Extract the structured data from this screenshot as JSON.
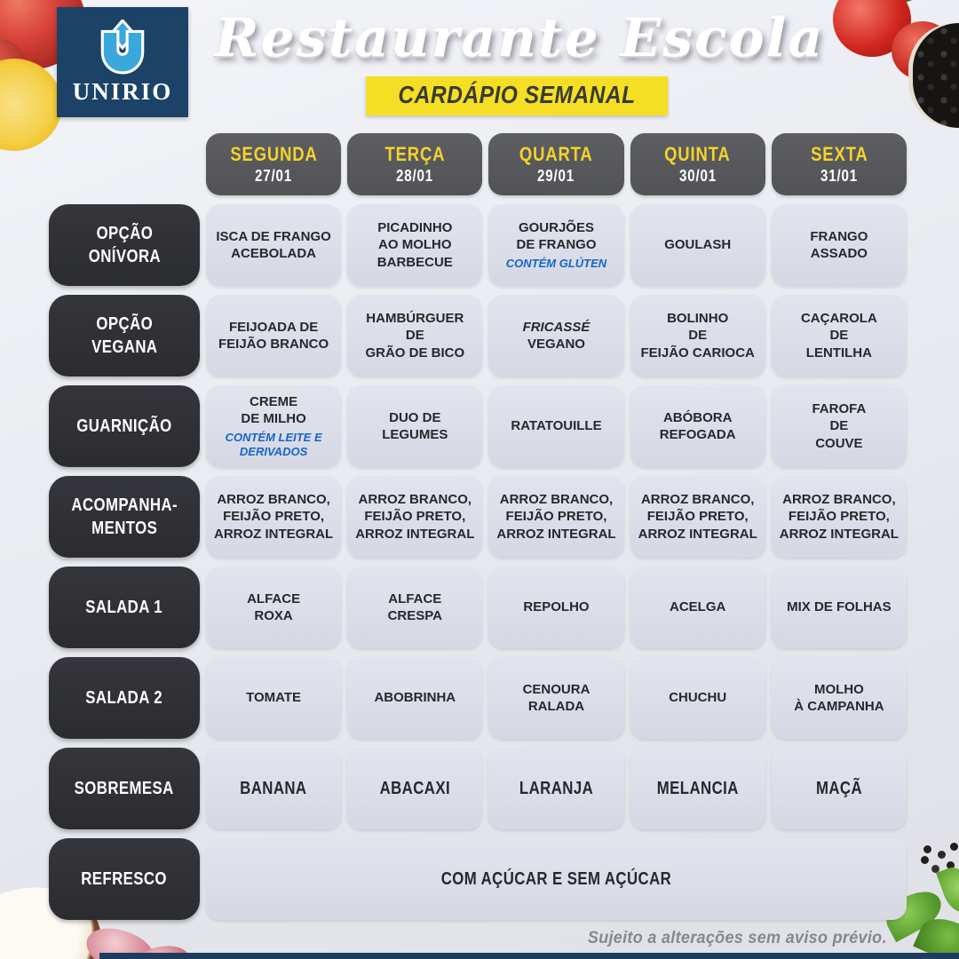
{
  "header": {
    "logo_text": "UNIRIO",
    "title": "Restaurante Escola",
    "subtitle": "CARDÁPIO SEMANAL"
  },
  "days": [
    {
      "name": "SEGUNDA",
      "date": "27/01"
    },
    {
      "name": "TERÇA",
      "date": "28/01"
    },
    {
      "name": "QUARTA",
      "date": "29/01"
    },
    {
      "name": "QUINTA",
      "date": "30/01"
    },
    {
      "name": "SEXTA",
      "date": "31/01"
    }
  ],
  "rows": [
    {
      "label": "OPÇÃO\nONÍVORA",
      "cells": [
        {
          "text": "ISCA DE FRANGO\nACEBOLADA"
        },
        {
          "text": "PICADINHO\nAO MOLHO\nBARBECUE"
        },
        {
          "text": "GOURJÕES\nDE FRANGO",
          "note": "CONTÉM GLÚTEN"
        },
        {
          "text": "GOULASH"
        },
        {
          "text": "FRANGO\nASSADO"
        }
      ]
    },
    {
      "label": "OPÇÃO\nVEGANA",
      "cells": [
        {
          "text": "FEIJOADA DE\nFEIJÃO BRANCO"
        },
        {
          "text": "HAMBÚRGUER\nDE\nGRÃO DE BICO"
        },
        {
          "text": "FRICASSÉ\nVEGANO",
          "em": "FRICASSÉ"
        },
        {
          "text": "BOLINHO\nDE\nFEIJÃO CARIOCA"
        },
        {
          "text": "CAÇAROLA\nDE\nLENTILHA"
        }
      ]
    },
    {
      "label": "GUARNIÇÃO",
      "cells": [
        {
          "text": "CREME\nDE MILHO",
          "note": "CONTÉM LEITE E\nDERIVADOS"
        },
        {
          "text": "DUO DE\nLEGUMES"
        },
        {
          "text": "RATATOUILLE"
        },
        {
          "text": "ABÓBORA\nREFOGADA"
        },
        {
          "text": "FAROFA\nDE\nCOUVE"
        }
      ]
    },
    {
      "label": "ACOMPANHA-\nMENTOS",
      "cells": [
        {
          "text": "ARROZ BRANCO,\nFEIJÃO PRETO,\nARROZ INTEGRAL"
        },
        {
          "text": "ARROZ BRANCO,\nFEIJÃO PRETO,\nARROZ INTEGRAL"
        },
        {
          "text": "ARROZ BRANCO,\nFEIJÃO PRETO,\nARROZ INTEGRAL"
        },
        {
          "text": "ARROZ BRANCO,\nFEIJÃO PRETO,\nARROZ INTEGRAL"
        },
        {
          "text": "ARROZ BRANCO,\nFEIJÃO PRETO,\nARROZ INTEGRAL"
        }
      ]
    },
    {
      "label": "SALADA 1",
      "cells": [
        {
          "text": "ALFACE\nROXA"
        },
        {
          "text": "ALFACE\nCRESPA"
        },
        {
          "text": "REPOLHO"
        },
        {
          "text": "ACELGA"
        },
        {
          "text": "MIX DE FOLHAS"
        }
      ]
    },
    {
      "label": "SALADA 2",
      "cells": [
        {
          "text": "TOMATE"
        },
        {
          "text": "ABOBRINHA"
        },
        {
          "text": "CENOURA\nRALADA"
        },
        {
          "text": "CHUCHU"
        },
        {
          "text": "MOLHO\nÀ CAMPANHA"
        }
      ]
    },
    {
      "label": "SOBREMESA",
      "condensed": true,
      "cells": [
        {
          "text": "BANANA"
        },
        {
          "text": "ABACAXI"
        },
        {
          "text": "LARANJA"
        },
        {
          "text": "MELANCIA"
        },
        {
          "text": "MAÇÃ"
        }
      ]
    },
    {
      "label": "REFRESCO",
      "condensed": true,
      "span_all": true,
      "cells": [
        {
          "text": "COM AÇÚCAR E SEM AÇÚCAR"
        }
      ]
    }
  ],
  "footer": {
    "note": "Sujeito a alterações sem aviso prévio."
  },
  "colors": {
    "accent_yellow": "#F5DF25",
    "day_name_yellow": "#F5D32B",
    "note_blue": "#1565C6",
    "label_dark": "#2F3034",
    "header_gray": "#58595C",
    "logo_navy": "#1C4367",
    "cell_bg": "#DCDFE9"
  }
}
